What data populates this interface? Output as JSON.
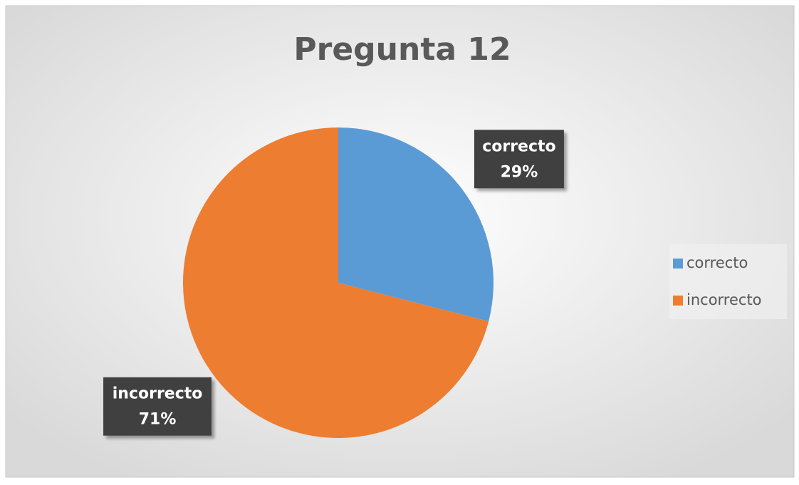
{
  "chart_data": {
    "type": "pie",
    "title": "Pregunta 12",
    "categories": [
      "correcto",
      "incorrecto"
    ],
    "values": [
      29,
      71
    ],
    "value_labels": [
      "29%",
      "71%"
    ],
    "colors": [
      "#5b9bd5",
      "#ed7d31"
    ],
    "legend": "right"
  }
}
